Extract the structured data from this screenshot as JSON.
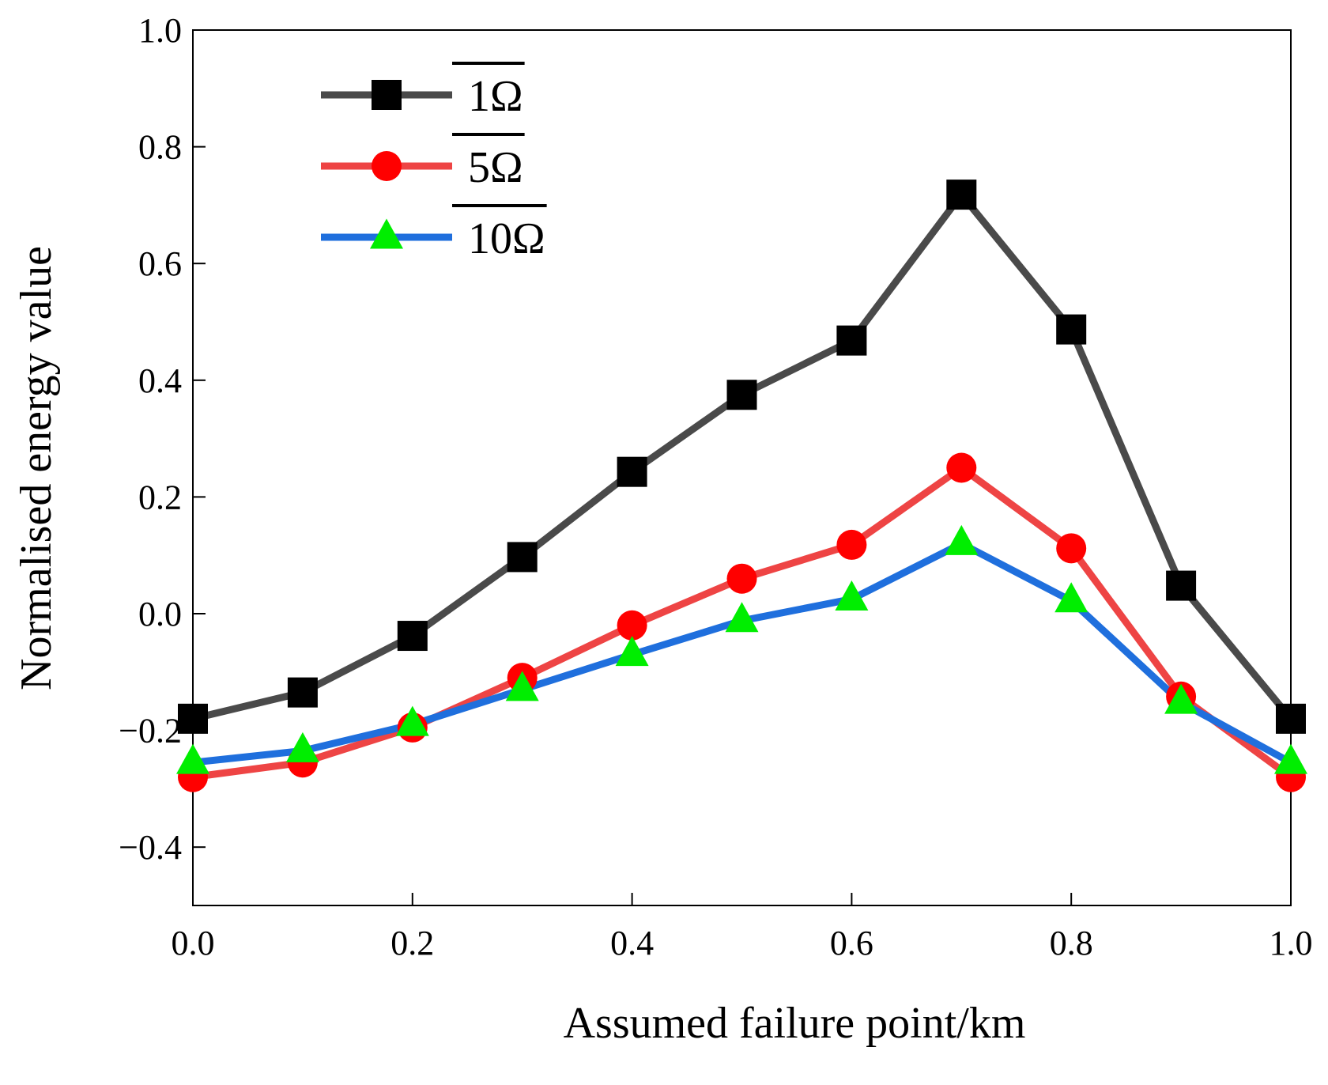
{
  "chart_data": {
    "type": "line",
    "title": "",
    "xlabel": "Assumed failure point/km",
    "ylabel": "Normalised energy value",
    "xlim": [
      0.0,
      1.0
    ],
    "ylim": [
      -0.5,
      1.0
    ],
    "x_ticks": [
      "0.0",
      "0.2",
      "0.4",
      "0.6",
      "0.8",
      "1.0"
    ],
    "y_ticks": [
      "1.0",
      "0.8",
      "0.6",
      "0.4",
      "0.2",
      "0.0",
      "−0.2",
      "−0.4"
    ],
    "grid": false,
    "legend_position": "top-left",
    "x": [
      0.0,
      0.1,
      0.2,
      0.3,
      0.4,
      0.5,
      0.6,
      0.7,
      0.8,
      0.9,
      1.0
    ],
    "series": [
      {
        "name": "1Ω",
        "line_color": "#4a4a4a",
        "marker": "square",
        "marker_color": "#000000",
        "values": [
          -0.18,
          -0.135,
          -0.038,
          0.097,
          0.243,
          0.375,
          0.468,
          0.718,
          0.487,
          0.048,
          -0.18
        ]
      },
      {
        "name": "5Ω",
        "line_color": "#ee4444",
        "marker": "circle",
        "marker_color": "#ff0000",
        "values": [
          -0.28,
          -0.255,
          -0.195,
          -0.11,
          -0.02,
          0.06,
          0.118,
          0.25,
          0.112,
          -0.142,
          -0.28
        ]
      },
      {
        "name": "10Ω",
        "line_color": "#1f6fdd",
        "marker": "triangle",
        "marker_color": "#00ee00",
        "values": [
          -0.255,
          -0.235,
          -0.19,
          -0.13,
          -0.07,
          -0.012,
          0.025,
          0.12,
          0.022,
          -0.152,
          -0.255
        ]
      }
    ]
  }
}
